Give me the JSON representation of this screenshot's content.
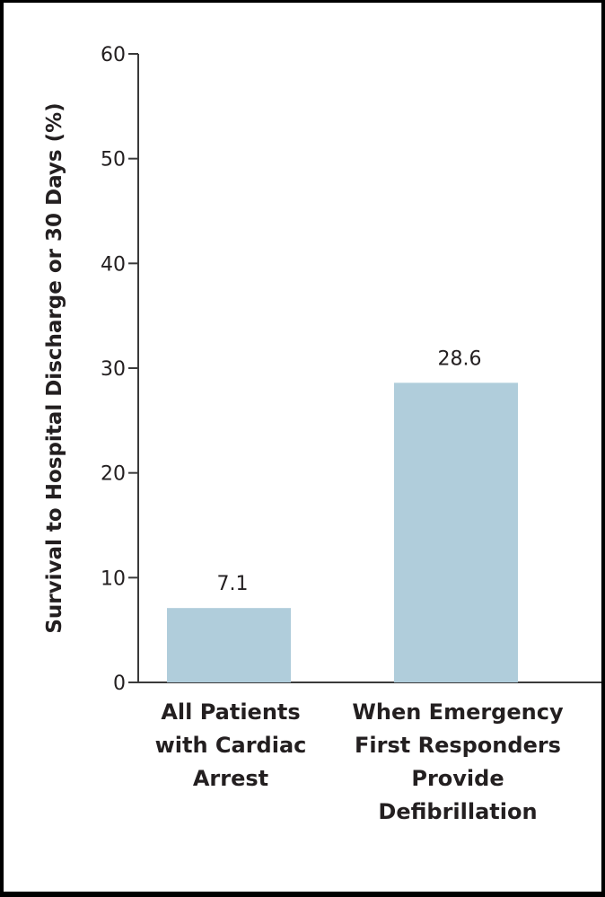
{
  "chart_data": {
    "type": "bar",
    "categories": [
      [
        "All Patients",
        "with Cardiac",
        "Arrest"
      ],
      [
        "When Emergency",
        "First Responders",
        "Provide",
        "Defibrillation"
      ]
    ],
    "values": [
      7.1,
      28.6
    ],
    "data_labels": [
      "7.1",
      "28.6"
    ],
    "ylabel": "Survival to Hospital Discharge or 30 Days (%)",
    "ylim": [
      0,
      60
    ],
    "yticks": [
      0,
      10,
      20,
      30,
      40,
      50,
      60
    ],
    "grid": false,
    "legend": "none",
    "bar_color": "#b0cddb",
    "axis_color": "#3a3a3a"
  }
}
